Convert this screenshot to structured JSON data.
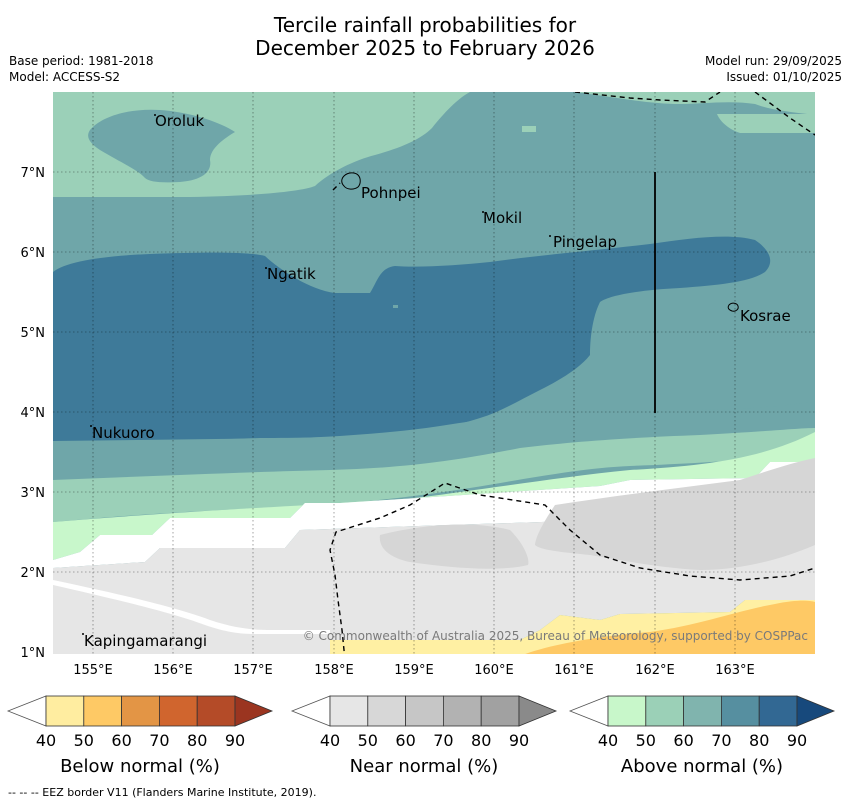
{
  "title": {
    "line1": "Tercile rainfall probabilities for",
    "line2": "December 2025 to February 2026"
  },
  "meta": {
    "base_period": "Base period: 1981-2018",
    "model": "Model: ACCESS-S2",
    "model_run": "Model run: 29/09/2025",
    "issued": "Issued: 01/10/2025"
  },
  "map": {
    "lon_ticks": [
      "155°E",
      "156°E",
      "157°E",
      "158°E",
      "159°E",
      "160°E",
      "161°E",
      "162°E",
      "163°E"
    ],
    "lat_ticks": [
      "7°N",
      "6°N",
      "5°N",
      "4°N",
      "3°N",
      "2°N",
      "1°N"
    ],
    "places": [
      "Oroluk",
      "Pohnpei",
      "Mokil",
      "Pingelap",
      "Ngatik",
      "Kosrae",
      "Nukuoro",
      "Kapingamarangi"
    ],
    "copyright": "© Commonwealth of Australia 2025, Bureau of Meteorology, supported by COSPPac"
  },
  "colorbars": {
    "below": {
      "label": "Below normal (%)",
      "ticks": [
        "40",
        "50",
        "60",
        "70",
        "80",
        "90"
      ],
      "colors": [
        "#ffeda0",
        "#fec965",
        "#e39545",
        "#d0652e",
        "#b44b28",
        "#9b3520"
      ]
    },
    "near": {
      "label": "Near normal (%)",
      "ticks": [
        "40",
        "50",
        "60",
        "70",
        "80",
        "90"
      ],
      "colors": [
        "#e6e6e6",
        "#d7d7d7",
        "#c6c6c6",
        "#b2b2b2",
        "#a1a1a1",
        "#8a8a8a"
      ]
    },
    "above": {
      "label": "Above normal (%)",
      "ticks": [
        "40",
        "50",
        "60",
        "70",
        "80",
        "90"
      ],
      "colors": [
        "#c8f7ca",
        "#9bd0b7",
        "#80b4ae",
        "#568fa0",
        "#326893",
        "#17497c"
      ]
    }
  },
  "footnote": "-- -- -- EEZ border V11 (Flanders Marine Institute, 2019)."
}
